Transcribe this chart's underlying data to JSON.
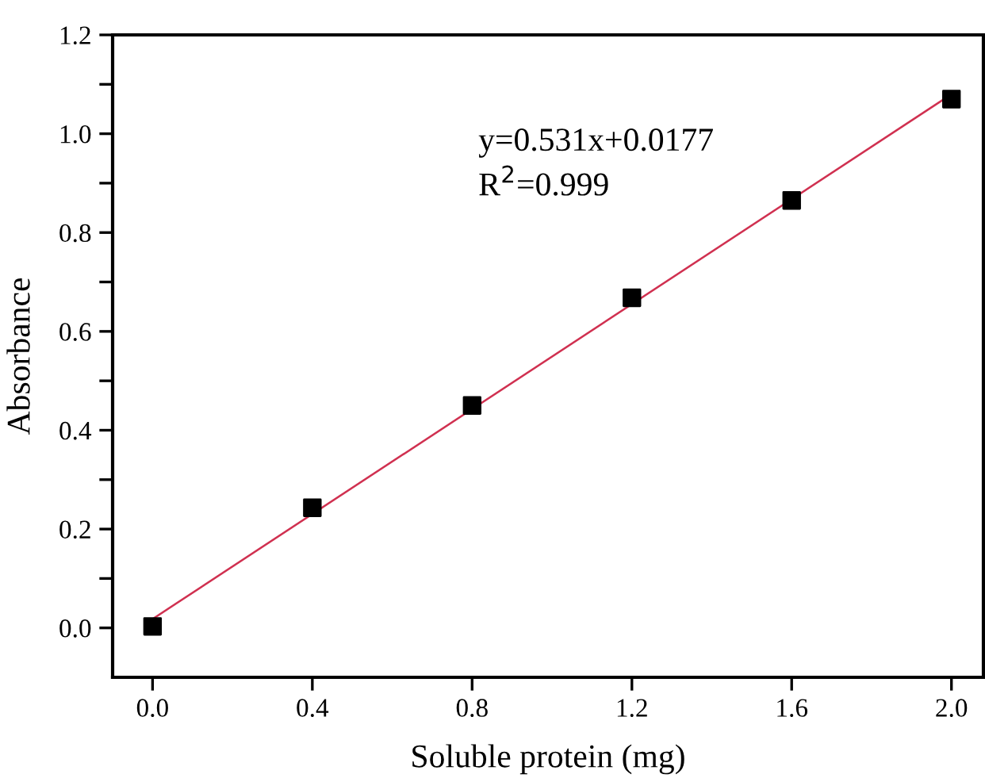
{
  "chart_data": {
    "type": "scatter",
    "xlabel": "Soluble protein (mg)",
    "ylabel": "Absorbance",
    "x": [
      0.0,
      0.4,
      0.8,
      1.2,
      1.6,
      2.0
    ],
    "series": [
      {
        "color": "#000000",
        "marker": "square",
        "values": [
          0.003,
          0.243,
          0.45,
          0.668,
          0.865,
          1.07
        ]
      },
      {
        "type": "line",
        "color": "#d03050",
        "marker": "none",
        "x": [
          0.0,
          2.0
        ],
        "values": [
          0.018,
          1.08
        ]
      }
    ],
    "annotations": [
      "y=0.531x+0.0177",
      "R$^{2}$=0.999"
    ],
    "xlim": [
      -0.1,
      2.08
    ],
    "ylim": [
      -0.1,
      1.2
    ],
    "xticks": [
      {
        "value": 0,
        "label": "0.0"
      },
      0.4,
      0.8,
      1.2,
      1.6,
      {
        "value": 2,
        "label": "2.0"
      }
    ],
    "yticks": [
      {
        "value": 0,
        "label": "0.0"
      },
      {
        "value": 0.1,
        "label": null
      },
      0.2,
      {
        "value": 0.3,
        "label": null
      },
      0.4,
      {
        "value": 0.5,
        "label": null
      },
      0.6,
      {
        "value": 0.7,
        "label": null
      },
      0.8,
      {
        "value": 0.9,
        "label": null
      },
      {
        "value": 1,
        "label": "1.0"
      },
      {
        "value": 1.1,
        "label": null
      },
      1.2
    ],
    "grid": false,
    "legend": false
  }
}
